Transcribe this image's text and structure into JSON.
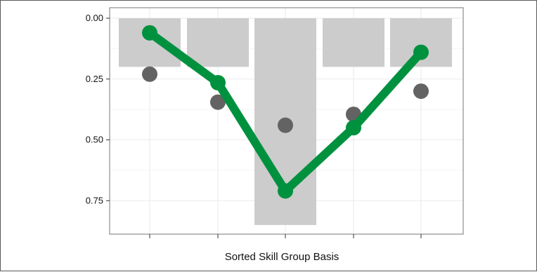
{
  "chart_data": {
    "type": "bar",
    "categories": [
      "",
      "",
      "",
      "",
      ""
    ],
    "xlabel": "Sorted Skill Group Basis",
    "ylabel": "",
    "ylim": [
      0,
      0.85
    ],
    "y_reversed": true,
    "y_ticks": [
      "0.00",
      "0.25",
      "0.50",
      "0.75"
    ],
    "y_tick_values": [
      0,
      0.25,
      0.5,
      0.75
    ],
    "grid": true,
    "colors": {
      "bar": "#cccccc",
      "line": "#00913f",
      "point": "#636363",
      "panel_border": "#8c8c8c",
      "grid": "#ebebeb"
    },
    "series": [
      {
        "kind": "bar",
        "values": [
          0.2,
          0.2,
          0.85,
          0.2,
          0.2
        ]
      },
      {
        "kind": "line",
        "values": [
          0.06,
          0.265,
          0.71,
          0.45,
          0.14
        ]
      },
      {
        "kind": "points",
        "values": [
          0.23,
          0.345,
          0.44,
          0.395,
          0.3
        ]
      }
    ]
  }
}
